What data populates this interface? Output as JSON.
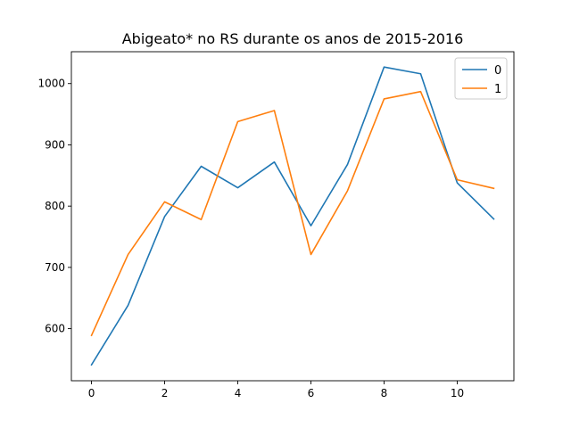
{
  "chart_data": {
    "type": "line",
    "title": "Abigeato* no RS durante os anos de 2015-2016",
    "xlabel": "",
    "ylabel": "",
    "x": [
      0,
      1,
      2,
      3,
      4,
      5,
      6,
      7,
      8,
      9,
      10,
      11
    ],
    "xlim": [
      -0.55,
      11.55
    ],
    "ylim": [
      515,
      1052
    ],
    "xticks": [
      0,
      2,
      4,
      6,
      8,
      10
    ],
    "yticks": [
      600,
      700,
      800,
      900,
      1000
    ],
    "grid": false,
    "legend_position": "top-right",
    "series": [
      {
        "name": "0",
        "color": "#1f77b4",
        "values": [
          541,
          638,
          783,
          865,
          830,
          872,
          768,
          868,
          1027,
          1016,
          838,
          779
        ]
      },
      {
        "name": "1",
        "color": "#ff7f0e",
        "values": [
          589,
          721,
          807,
          778,
          938,
          956,
          721,
          825,
          975,
          987,
          843,
          829
        ]
      }
    ]
  }
}
